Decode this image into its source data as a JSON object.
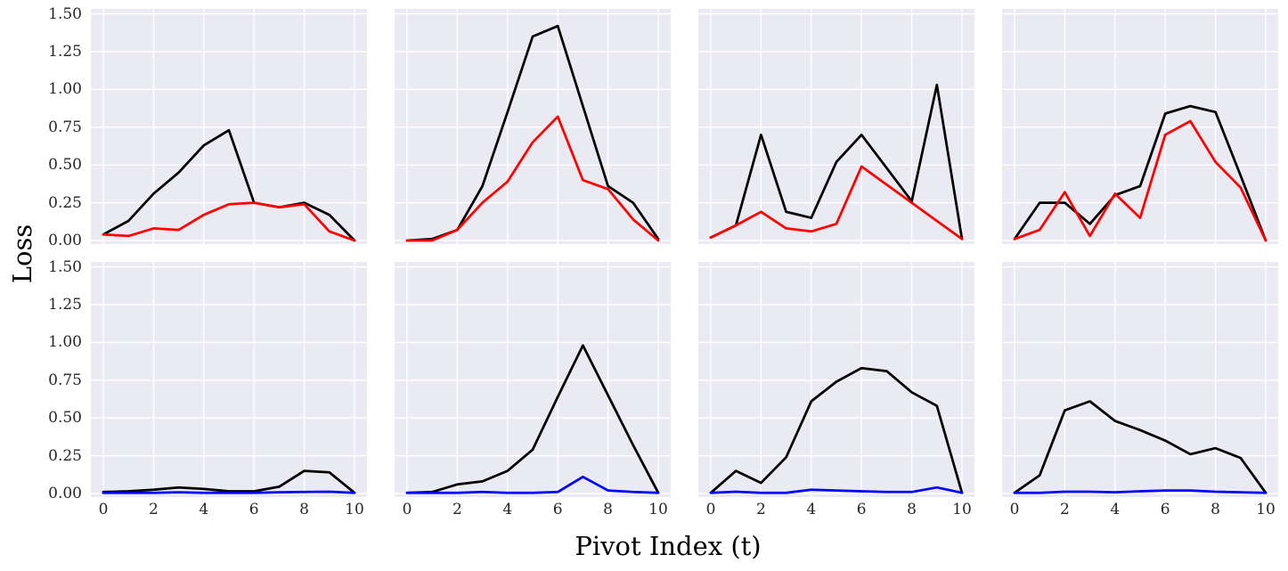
{
  "figure": {
    "ylabel": "Loss",
    "xlabel": "Pivot Index (t)",
    "background": "#ffffff",
    "plot_bg": "#eaeaf2",
    "grid_color": "#ffffff",
    "tick_color": "#262626",
    "line_colors": {
      "black": "#000000",
      "red": "#ff0000",
      "blue": "#0000ff"
    }
  },
  "axes": {
    "y_tick_labels": [
      "0.00",
      "0.25",
      "0.50",
      "0.75",
      "1.00",
      "1.25",
      "1.50"
    ],
    "y_grid_values": [
      0,
      0.25,
      0.5,
      0.75,
      1.0,
      1.25,
      1.5
    ],
    "x_tick_labels": [
      "0",
      "2",
      "4",
      "6",
      "8",
      "10"
    ],
    "x_grid_values": [
      0,
      2,
      4,
      6,
      8,
      10
    ],
    "ylim": [
      -0.03,
      1.53
    ],
    "xlim": [
      -0.55,
      10.55
    ]
  },
  "chart_data": [
    {
      "type": "line",
      "position": {
        "row": 1,
        "col": 1
      },
      "xlabel": "Pivot Index (t)",
      "ylabel": "Loss",
      "grid": true,
      "legend": false,
      "ylim": [
        -0.03,
        1.53
      ],
      "x": [
        0,
        1,
        2,
        3,
        4,
        5,
        6,
        7,
        8,
        9,
        10
      ],
      "series": [
        {
          "name": "black",
          "color": "#000000",
          "values": [
            0.04,
            0.13,
            0.31,
            0.45,
            0.63,
            0.73,
            0.25,
            0.22,
            0.25,
            0.17,
            0.0
          ]
        },
        {
          "name": "red",
          "color": "#ff0000",
          "values": [
            0.04,
            0.03,
            0.08,
            0.07,
            0.17,
            0.24,
            0.25,
            0.22,
            0.24,
            0.06,
            0.0
          ]
        }
      ]
    },
    {
      "type": "line",
      "position": {
        "row": 1,
        "col": 2
      },
      "xlabel": "Pivot Index (t)",
      "ylabel": "Loss",
      "grid": true,
      "legend": false,
      "ylim": [
        -0.03,
        1.53
      ],
      "x": [
        0,
        1,
        2,
        3,
        4,
        5,
        6,
        7,
        8,
        9,
        10
      ],
      "series": [
        {
          "name": "black",
          "color": "#000000",
          "values": [
            0.0,
            0.01,
            0.07,
            0.36,
            0.85,
            1.35,
            1.42,
            0.89,
            0.36,
            0.25,
            0.01
          ]
        },
        {
          "name": "red",
          "color": "#ff0000",
          "values": [
            0.0,
            0.0,
            0.07,
            0.25,
            0.39,
            0.65,
            0.82,
            0.4,
            0.34,
            0.14,
            0.0
          ]
        }
      ]
    },
    {
      "type": "line",
      "position": {
        "row": 1,
        "col": 3
      },
      "xlabel": "Pivot Index (t)",
      "ylabel": "Loss",
      "grid": true,
      "legend": false,
      "ylim": [
        -0.03,
        1.53
      ],
      "x": [
        0,
        1,
        2,
        3,
        4,
        5,
        6,
        7,
        8,
        9,
        10
      ],
      "series": [
        {
          "name": "black",
          "color": "#000000",
          "values": [
            0.02,
            0.1,
            0.7,
            0.19,
            0.15,
            0.52,
            0.7,
            0.48,
            0.26,
            1.03,
            0.01
          ]
        },
        {
          "name": "red",
          "color": "#ff0000",
          "values": [
            0.02,
            0.1,
            0.19,
            0.08,
            0.06,
            0.11,
            0.49,
            0.37,
            0.25,
            0.13,
            0.01
          ]
        }
      ]
    },
    {
      "type": "line",
      "position": {
        "row": 1,
        "col": 4
      },
      "xlabel": "Pivot Index (t)",
      "ylabel": "Loss",
      "grid": true,
      "legend": false,
      "ylim": [
        -0.03,
        1.53
      ],
      "x": [
        0,
        1,
        2,
        3,
        4,
        5,
        6,
        7,
        8,
        9,
        10
      ],
      "series": [
        {
          "name": "black",
          "color": "#000000",
          "values": [
            0.01,
            0.25,
            0.25,
            0.11,
            0.3,
            0.36,
            0.84,
            0.89,
            0.85,
            0.43,
            0.0
          ]
        },
        {
          "name": "red",
          "color": "#ff0000",
          "values": [
            0.01,
            0.07,
            0.32,
            0.03,
            0.31,
            0.15,
            0.7,
            0.79,
            0.52,
            0.35,
            0.0
          ]
        }
      ]
    },
    {
      "type": "line",
      "position": {
        "row": 2,
        "col": 1
      },
      "xlabel": "Pivot Index (t)",
      "ylabel": "Loss",
      "grid": true,
      "legend": false,
      "ylim": [
        -0.03,
        1.53
      ],
      "x": [
        0,
        1,
        2,
        3,
        4,
        5,
        6,
        7,
        8,
        9,
        10
      ],
      "series": [
        {
          "name": "black",
          "color": "#000000",
          "values": [
            0.01,
            0.015,
            0.025,
            0.04,
            0.03,
            0.015,
            0.015,
            0.045,
            0.15,
            0.14,
            0.005
          ]
        },
        {
          "name": "blue",
          "color": "#0000ff",
          "values": [
            0.005,
            0.005,
            0.005,
            0.008,
            0.005,
            0.005,
            0.005,
            0.008,
            0.01,
            0.012,
            0.005
          ]
        }
      ]
    },
    {
      "type": "line",
      "position": {
        "row": 2,
        "col": 2
      },
      "xlabel": "Pivot Index (t)",
      "ylabel": "Loss",
      "grid": true,
      "legend": false,
      "ylim": [
        -0.03,
        1.53
      ],
      "x": [
        0,
        1,
        2,
        3,
        4,
        5,
        6,
        7,
        8,
        9,
        10
      ],
      "series": [
        {
          "name": "black",
          "color": "#000000",
          "values": [
            0.005,
            0.01,
            0.06,
            0.08,
            0.15,
            0.29,
            0.64,
            0.98,
            0.65,
            0.32,
            0.005
          ]
        },
        {
          "name": "blue",
          "color": "#0000ff",
          "values": [
            0.005,
            0.005,
            0.005,
            0.01,
            0.005,
            0.005,
            0.01,
            0.11,
            0.02,
            0.01,
            0.005
          ]
        }
      ]
    },
    {
      "type": "line",
      "position": {
        "row": 2,
        "col": 3
      },
      "xlabel": "Pivot Index (t)",
      "ylabel": "Loss",
      "grid": true,
      "legend": false,
      "ylim": [
        -0.03,
        1.53
      ],
      "x": [
        0,
        1,
        2,
        3,
        4,
        5,
        6,
        7,
        8,
        9,
        10
      ],
      "series": [
        {
          "name": "black",
          "color": "#000000",
          "values": [
            0.005,
            0.15,
            0.07,
            0.24,
            0.61,
            0.74,
            0.83,
            0.81,
            0.67,
            0.58,
            0.005
          ]
        },
        {
          "name": "blue",
          "color": "#0000ff",
          "values": [
            0.005,
            0.012,
            0.005,
            0.005,
            0.025,
            0.02,
            0.015,
            0.01,
            0.01,
            0.04,
            0.005
          ]
        }
      ]
    },
    {
      "type": "line",
      "position": {
        "row": 2,
        "col": 4
      },
      "xlabel": "Pivot Index (t)",
      "ylabel": "Loss",
      "grid": true,
      "legend": false,
      "ylim": [
        -0.03,
        1.53
      ],
      "x": [
        0,
        1,
        2,
        3,
        4,
        5,
        6,
        7,
        8,
        9,
        10
      ],
      "series": [
        {
          "name": "black",
          "color": "#000000",
          "values": [
            0.005,
            0.12,
            0.55,
            0.61,
            0.48,
            0.42,
            0.35,
            0.26,
            0.3,
            0.235,
            0.005
          ]
        },
        {
          "name": "blue",
          "color": "#0000ff",
          "values": [
            0.005,
            0.005,
            0.012,
            0.012,
            0.008,
            0.015,
            0.02,
            0.02,
            0.012,
            0.008,
            0.005
          ]
        }
      ]
    }
  ]
}
